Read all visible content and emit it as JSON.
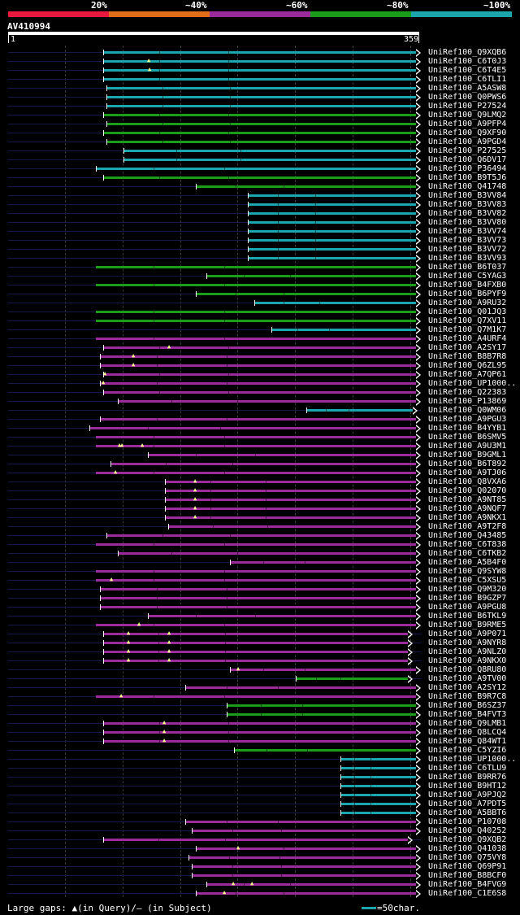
{
  "legend": {
    "labels": [
      "20%",
      "~40%",
      "~60%",
      "~80%",
      "~100%"
    ],
    "colors": [
      "#e8193c",
      "#e06d1a",
      "#9b2a9b",
      "#1a9e1a",
      "#1aa6ac"
    ]
  },
  "query": {
    "id": "AV410994",
    "start": "1",
    "end": "359"
  },
  "footer": {
    "gap_legend": "Large gaps: ▲(in Query)/– (in Subject)",
    "scale_label": "=50char.",
    "scale_color": "#1aa6ac"
  },
  "hits": [
    {
      "label": "UniRef100_Q9XQB6",
      "color": "teal",
      "start": 127,
      "gaps": [],
      "lead": true
    },
    {
      "label": "UniRef100_C6T0J3",
      "color": "teal",
      "start": 127,
      "gaps": [
        183
      ],
      "lead": true
    },
    {
      "label": "UniRef100_C6T4E5",
      "color": "teal",
      "start": 127,
      "gaps": [
        184
      ],
      "lead": true
    },
    {
      "label": "UniRef100_C6TLI1",
      "color": "teal",
      "start": 127,
      "gaps": [],
      "lead": true
    },
    {
      "label": "UniRef100_A5ASW8",
      "color": "teal",
      "start": 131,
      "gaps": [],
      "lead": true
    },
    {
      "label": "UniRef100_Q0PWS6",
      "color": "teal",
      "start": 131,
      "gaps": [],
      "lead": true
    },
    {
      "label": "UniRef100_P27524",
      "color": "teal",
      "start": 131,
      "gaps": [],
      "lead": true
    },
    {
      "label": "UniRef100_Q9LMQ2",
      "color": "green",
      "start": 127,
      "gaps": [],
      "lead": true
    },
    {
      "label": "UniRef100_A9PFP4",
      "color": "green",
      "start": 131,
      "gaps": [],
      "lead": true
    },
    {
      "label": "UniRef100_Q9XF90",
      "color": "green",
      "start": 127,
      "gaps": [],
      "lead": true
    },
    {
      "label": "UniRef100_A9PGD4",
      "color": "green",
      "start": 131,
      "gaps": [],
      "lead": true
    },
    {
      "label": "UniRef100_P27525",
      "color": "teal",
      "start": 152,
      "gaps": [],
      "lead": true
    },
    {
      "label": "UniRef100_Q6DV17",
      "color": "teal",
      "start": 152,
      "gaps": [],
      "lead": true
    },
    {
      "label": "UniRef100_P36494",
      "color": "teal",
      "start": 118,
      "gaps": [],
      "lead": true
    },
    {
      "label": "UniRef100_B9T5J6",
      "color": "green",
      "start": 127,
      "gaps": [],
      "lead": true
    },
    {
      "label": "UniRef100_Q41748",
      "color": "green",
      "start": 241,
      "gaps": [],
      "lead": true
    },
    {
      "label": "UniRef100_B3VV84",
      "color": "teal",
      "start": 305,
      "gaps": [],
      "lead": true
    },
    {
      "label": "UniRef100_B3VV83",
      "color": "teal",
      "start": 305,
      "gaps": [],
      "lead": true
    },
    {
      "label": "UniRef100_B3VV82",
      "color": "teal",
      "start": 305,
      "gaps": [],
      "lead": true
    },
    {
      "label": "UniRef100_B3VV80",
      "color": "teal",
      "start": 305,
      "gaps": [],
      "lead": true
    },
    {
      "label": "UniRef100_B3VV74",
      "color": "teal",
      "start": 305,
      "gaps": [],
      "lead": true
    },
    {
      "label": "UniRef100_B3VV73",
      "color": "teal",
      "start": 305,
      "gaps": [],
      "lead": true
    },
    {
      "label": "UniRef100_B3VV72",
      "color": "teal",
      "start": 305,
      "gaps": [],
      "lead": true
    },
    {
      "label": "UniRef100_B3VV93",
      "color": "teal",
      "start": 305,
      "gaps": [],
      "lead": true
    },
    {
      "label": "UniRef100_B6T037",
      "color": "green",
      "start": 118,
      "gaps": [],
      "lead": false
    },
    {
      "label": "UniRef100_C5YAG3",
      "color": "green",
      "start": 254,
      "gaps": [],
      "lead": true
    },
    {
      "label": "UniRef100_B4FXB0",
      "color": "green",
      "start": 118,
      "gaps": [],
      "lead": false
    },
    {
      "label": "UniRef100_B6PYF9",
      "color": "green",
      "start": 241,
      "gaps": [],
      "lead": true
    },
    {
      "label": "UniRef100_A9RU32",
      "color": "teal",
      "start": 313,
      "gaps": [],
      "lead": true
    },
    {
      "label": "UniRef100_Q01JQ3",
      "color": "green",
      "start": 118,
      "gaps": [],
      "lead": false
    },
    {
      "label": "UniRef100_Q7XV11",
      "color": "green",
      "start": 118,
      "gaps": [],
      "lead": false
    },
    {
      "label": "UniRef100_Q7M1K7",
      "color": "teal",
      "start": 334,
      "gaps": [],
      "lead": true
    },
    {
      "label": "UniRef100_A4URF4",
      "color": "purple",
      "start": 118,
      "gaps": [],
      "lead": false
    },
    {
      "label": "UniRef100_A2SY17",
      "color": "purple",
      "start": 127,
      "gaps": [
        208
      ],
      "lead": true
    },
    {
      "label": "UniRef100_B8B7R8",
      "color": "purple",
      "start": 123,
      "gaps": [
        164
      ],
      "lead": true
    },
    {
      "label": "UniRef100_Q6ZL95",
      "color": "purple",
      "start": 123,
      "gaps": [
        164
      ],
      "lead": true
    },
    {
      "label": "UniRef100_A7QP61",
      "color": "purple",
      "start": 127,
      "gaps": [
        129
      ],
      "lead": true
    },
    {
      "label": "UniRef100_UP1000..",
      "color": "purple",
      "start": 123,
      "gaps": [
        127
      ],
      "lead": true
    },
    {
      "label": "UniRef100_Q22383",
      "color": "purple",
      "start": 127,
      "gaps": [],
      "lead": true
    },
    {
      "label": "UniRef100_P13869",
      "color": "purple",
      "start": 145,
      "gaps": [],
      "lead": true
    },
    {
      "label": "UniRef100_Q0WM06",
      "color": "teal",
      "start": 377,
      "gaps": [],
      "lead": true,
      "end": 508
    },
    {
      "label": "UniRef100_A9PGU3",
      "color": "purple",
      "start": 123,
      "gaps": [],
      "lead": true
    },
    {
      "label": "UniRef100_B4YYB1",
      "color": "purple",
      "start": 110,
      "gaps": [],
      "lead": true
    },
    {
      "label": "UniRef100_B6SMV5",
      "color": "purple",
      "start": 118,
      "gaps": [],
      "lead": false
    },
    {
      "label": "UniRef100_A9U3M1",
      "color": "purple",
      "start": 118,
      "gaps": [
        147,
        150,
        175
      ],
      "lead": false
    },
    {
      "label": "UniRef100_B9GML1",
      "color": "purple",
      "start": 182,
      "gaps": [],
      "lead": true
    },
    {
      "label": "UniRef100_B6T892",
      "color": "purple",
      "start": 136,
      "gaps": [],
      "lead": true
    },
    {
      "label": "UniRef100_A9TJ06",
      "color": "purple",
      "start": 118,
      "gaps": [
        142
      ],
      "lead": false
    },
    {
      "label": "UniRef100_Q8VXA6",
      "color": "purple",
      "start": 203,
      "gaps": [
        240
      ],
      "lead": true
    },
    {
      "label": "UniRef100_Q02070",
      "color": "purple",
      "start": 203,
      "gaps": [
        240
      ],
      "lead": true
    },
    {
      "label": "UniRef100_A9NT85",
      "color": "purple",
      "start": 203,
      "gaps": [
        240
      ],
      "lead": true
    },
    {
      "label": "UniRef100_A9NQF7",
      "color": "purple",
      "start": 203,
      "gaps": [
        240
      ],
      "lead": true
    },
    {
      "label": "UniRef100_A9NKX1",
      "color": "purple",
      "start": 203,
      "gaps": [
        240
      ],
      "lead": true
    },
    {
      "label": "UniRef100_A9T2F8",
      "color": "purple",
      "start": 207,
      "gaps": [],
      "lead": true
    },
    {
      "label": "UniRef100_Q43485",
      "color": "purple",
      "start": 131,
      "gaps": [],
      "lead": true
    },
    {
      "label": "UniRef100_C6T838",
      "color": "purple",
      "start": 118,
      "gaps": [],
      "lead": false
    },
    {
      "label": "UniRef100_C6TKB2",
      "color": "purple",
      "start": 145,
      "gaps": [],
      "lead": true
    },
    {
      "label": "UniRef100_A5B4F0",
      "color": "purple",
      "start": 283,
      "gaps": [],
      "lead": true
    },
    {
      "label": "UniRef100_Q9SYW8",
      "color": "purple",
      "start": 118,
      "gaps": [],
      "lead": false
    },
    {
      "label": "UniRef100_C5XSU5",
      "color": "purple",
      "start": 118,
      "gaps": [
        137
      ],
      "lead": false
    },
    {
      "label": "UniRef100_Q9M320",
      "color": "purple",
      "start": 123,
      "gaps": [],
      "lead": true
    },
    {
      "label": "UniRef100_B9GZP7",
      "color": "purple",
      "start": 123,
      "gaps": [],
      "lead": true
    },
    {
      "label": "UniRef100_A9PGU8",
      "color": "purple",
      "start": 123,
      "gaps": [],
      "lead": true
    },
    {
      "label": "UniRef100_B6TKL9",
      "color": "purple",
      "start": 182,
      "gaps": [],
      "lead": true
    },
    {
      "label": "UniRef100_B9RME5",
      "color": "purple",
      "start": 118,
      "gaps": [
        171
      ],
      "lead": false
    },
    {
      "label": "UniRef100_A9P071",
      "color": "purple",
      "start": 127,
      "gaps": [
        158,
        208
      ],
      "lead": true,
      "end": 502
    },
    {
      "label": "UniRef100_A9NYR8",
      "color": "purple",
      "start": 127,
      "gaps": [
        158,
        208
      ],
      "lead": true,
      "end": 502
    },
    {
      "label": "UniRef100_A9NLZ0",
      "color": "purple",
      "start": 127,
      "gaps": [
        158,
        208
      ],
      "lead": true,
      "end": 502
    },
    {
      "label": "UniRef100_A9NKX0",
      "color": "purple",
      "start": 127,
      "gaps": [
        158,
        208
      ],
      "lead": true,
      "end": 502
    },
    {
      "label": "UniRef100_Q8RU80",
      "color": "purple",
      "start": 283,
      "gaps": [
        293
      ],
      "lead": true
    },
    {
      "label": "UniRef100_A9TV00",
      "color": "green",
      "start": 364,
      "gaps": [],
      "lead": true,
      "end": 502
    },
    {
      "label": "UniRef100_A2SY12",
      "color": "purple",
      "start": 228,
      "gaps": [],
      "lead": true
    },
    {
      "label": "UniRef100_B9R7C8",
      "color": "purple",
      "start": 118,
      "gaps": [
        149
      ],
      "lead": false
    },
    {
      "label": "UniRef100_B6SZ37",
      "color": "green",
      "start": 279,
      "gaps": [],
      "lead": true
    },
    {
      "label": "UniRef100_B4FVT3",
      "color": "green",
      "start": 279,
      "gaps": [],
      "lead": true
    },
    {
      "label": "UniRef100_Q9LMB1",
      "color": "purple",
      "start": 127,
      "gaps": [
        202
      ],
      "lead": true
    },
    {
      "label": "UniRef100_Q8LCQ4",
      "color": "purple",
      "start": 127,
      "gaps": [
        202
      ],
      "lead": true
    },
    {
      "label": "UniRef100_Q84WT1",
      "color": "purple",
      "start": 127,
      "gaps": [
        202
      ],
      "lead": true
    },
    {
      "label": "UniRef100_C5YZI6",
      "color": "green",
      "start": 288,
      "gaps": [],
      "lead": true
    },
    {
      "label": "UniRef100_UP1000..",
      "color": "teal",
      "start": 419,
      "gaps": [],
      "lead": true
    },
    {
      "label": "UniRef100_C6TLU9",
      "color": "teal",
      "start": 419,
      "gaps": [],
      "lead": true
    },
    {
      "label": "UniRef100_B9RR76",
      "color": "teal",
      "start": 419,
      "gaps": [],
      "lead": true
    },
    {
      "label": "UniRef100_B9HT12",
      "color": "teal",
      "start": 419,
      "gaps": [],
      "lead": true
    },
    {
      "label": "UniRef100_A9PJQ2",
      "color": "teal",
      "start": 419,
      "gaps": [],
      "lead": true
    },
    {
      "label": "UniRef100_A7PDT5",
      "color": "teal",
      "start": 419,
      "gaps": [],
      "lead": true
    },
    {
      "label": "UniRef100_A5BBT6",
      "color": "teal",
      "start": 419,
      "gaps": [],
      "lead": true
    },
    {
      "label": "UniRef100_P10708",
      "color": "purple",
      "start": 228,
      "gaps": [],
      "lead": true
    },
    {
      "label": "UniRef100_Q40252",
      "color": "purple",
      "start": 236,
      "gaps": [],
      "lead": true
    },
    {
      "label": "UniRef100_Q9XQB2",
      "color": "purple",
      "start": 127,
      "gaps": [],
      "lead": true,
      "end": 502
    },
    {
      "label": "UniRef100_Q41038",
      "color": "purple",
      "start": 241,
      "gaps": [
        293
      ],
      "lead": true
    },
    {
      "label": "UniRef100_Q75VY8",
      "color": "purple",
      "start": 232,
      "gaps": [],
      "lead": true
    },
    {
      "label": "UniRef100_Q69P91",
      "color": "purple",
      "start": 236,
      "gaps": [],
      "lead": true
    },
    {
      "label": "UniRef100_B8BCF0",
      "color": "purple",
      "start": 236,
      "gaps": [],
      "lead": true
    },
    {
      "label": "UniRef100_B4FVG9",
      "color": "purple",
      "start": 254,
      "gaps": [
        287,
        310
      ],
      "lead": true
    },
    {
      "label": "UniRef100_C1E6S8",
      "color": "purple",
      "start": 241,
      "gaps": [
        276
      ],
      "lead": true
    }
  ]
}
